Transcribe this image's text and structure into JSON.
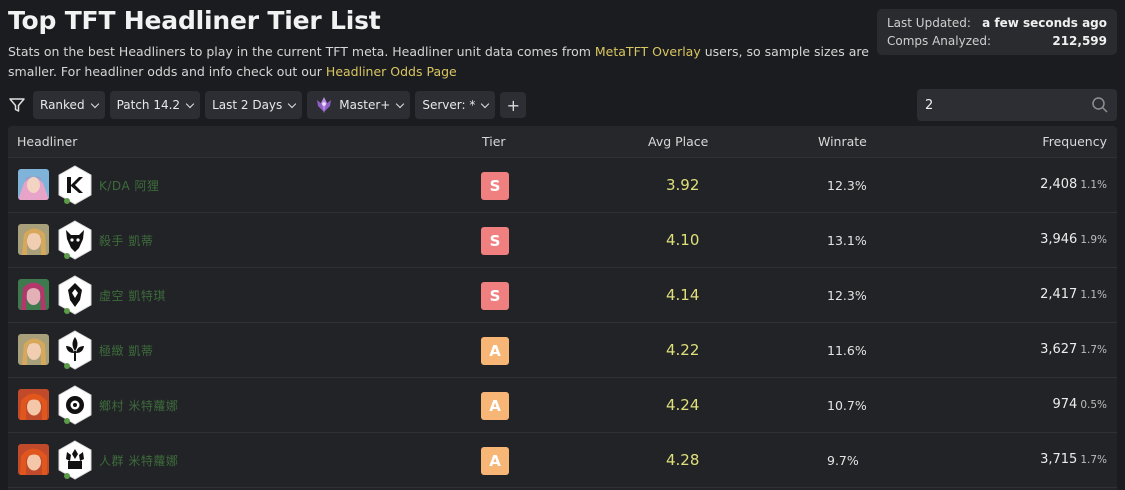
{
  "header": {
    "title": "Top TFT Headliner Tier List",
    "desc_part1": "Stats on the best Headliners to play in the current TFT meta. Headliner unit data comes from ",
    "desc_link1": "MetaTFT Overlay",
    "desc_part2": " users, so sample sizes are smaller. For headliner odds and info check out our ",
    "desc_link2": "Headliner Odds Page"
  },
  "stats": {
    "last_updated_label": "Last Updated:",
    "last_updated_value": "a few seconds ago",
    "comps_label": "Comps Analyzed:",
    "comps_value": "212,599"
  },
  "filters": {
    "mode": "Ranked",
    "patch": "Patch 14.2",
    "time": "Last 2 Days",
    "rank": "Master+",
    "server": "Server: *",
    "add": "+"
  },
  "search": {
    "value": "2"
  },
  "table": {
    "columns": {
      "headliner": "Headliner",
      "tier": "Tier",
      "avg": "Avg Place",
      "winrate": "Winrate",
      "frequency": "Frequency"
    },
    "rows": [
      {
        "name": "K/DA 阿狸",
        "tier": "S",
        "avg": "3.92",
        "winrate": "12.3%",
        "freq": "2,408",
        "freq_pct": "1.1%",
        "portrait": "ahri-portrait",
        "trait": "kda-trait-icon"
      },
      {
        "name": "殺手 凱蒂",
        "tier": "S",
        "avg": "4.10",
        "winrate": "13.1%",
        "freq": "3,946",
        "freq_pct": "1.9%",
        "portrait": "cait-portrait",
        "trait": "demon-trait-icon"
      },
      {
        "name": "虛空 凱特琪",
        "tier": "S",
        "avg": "4.14",
        "winrate": "12.3%",
        "freq": "2,417",
        "freq_pct": "1.1%",
        "portrait": "kaisa-portrait",
        "trait": "heart-trait-icon"
      },
      {
        "name": "極緻 凱蒂",
        "tier": "A",
        "avg": "4.22",
        "winrate": "11.6%",
        "freq": "3,627",
        "freq_pct": "1.7%",
        "portrait": "cait-portrait",
        "trait": "leaf-trait-icon"
      },
      {
        "name": "鄉村 米特蘿娜",
        "tier": "A",
        "avg": "4.24",
        "winrate": "10.7%",
        "freq": "974",
        "freq_pct": "0.5%",
        "portrait": "miss-portrait",
        "trait": "flower-trait-icon"
      },
      {
        "name": "人群 米特蘿娜",
        "tier": "A",
        "avg": "4.28",
        "winrate": "9.7%",
        "freq": "3,715",
        "freq_pct": "1.7%",
        "portrait": "miss-portrait",
        "trait": "crowd-trait-icon"
      }
    ]
  },
  "colors": {
    "tier_s": "#f08080",
    "tier_a": "#f7b576",
    "avg": "#dfe07a",
    "link": "#d8c562"
  }
}
